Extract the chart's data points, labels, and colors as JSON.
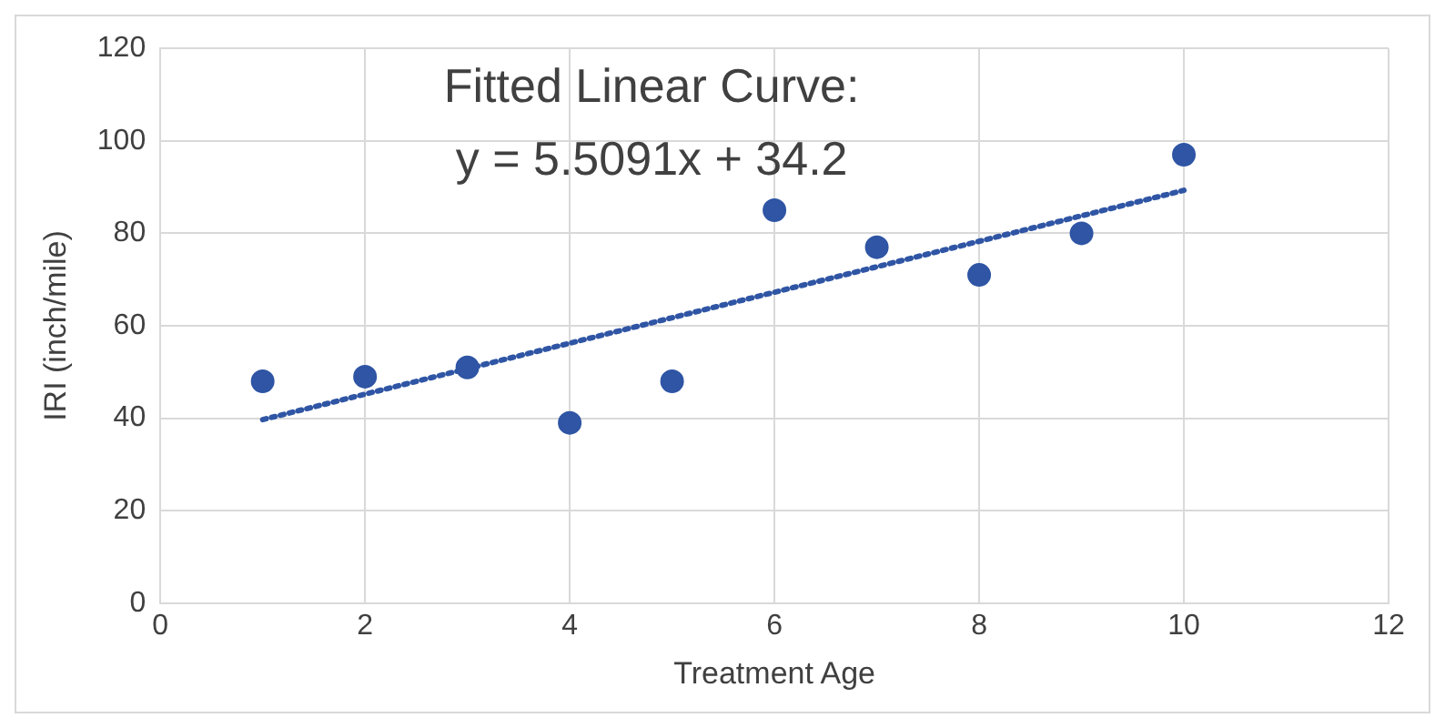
{
  "chart_data": {
    "type": "scatter",
    "xlabel": "Treatment Age",
    "ylabel": "IRI (inch/mile)",
    "x": [
      1,
      2,
      3,
      4,
      5,
      6,
      7,
      8,
      9,
      10
    ],
    "series": [
      {
        "type": "scatter",
        "color": "#2f55a4",
        "marker": "circle",
        "values": [
          48,
          49,
          51,
          39,
          48,
          85,
          77,
          71,
          80,
          97
        ]
      },
      {
        "type": "line",
        "color": "#2f55a4",
        "marker": "none",
        "line_style": "dotted",
        "x": [
          1,
          10
        ],
        "values": [
          39.7,
          89.3
        ]
      }
    ],
    "xlim": [
      0,
      12
    ],
    "xticks": [
      0,
      2,
      4,
      6,
      8,
      10,
      12
    ],
    "ylim": [
      0,
      120
    ],
    "yticks": [
      0,
      20,
      40,
      60,
      80,
      100,
      120
    ],
    "grid": true,
    "legend": false,
    "annotations": [
      "Fitted Linear Curve:",
      "y = 5.5091x + 34.2"
    ]
  }
}
